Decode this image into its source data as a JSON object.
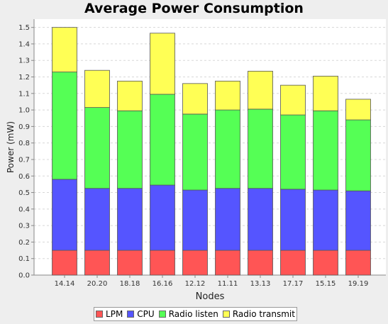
{
  "chart_data": {
    "type": "bar",
    "stacked": true,
    "title": "Average Power Consumption",
    "xlabel": "Nodes",
    "ylabel": "Power (mW)",
    "ylim": [
      0,
      1.55
    ],
    "yticks": [
      "0.0",
      "0.1",
      "0.2",
      "0.3",
      "0.4",
      "0.5",
      "0.6",
      "0.7",
      "0.8",
      "0.9",
      "1.0",
      "1.1",
      "1.2",
      "1.3",
      "1.4",
      "1.5"
    ],
    "grid": true,
    "legend_position": "bottom",
    "categories": [
      "14.14",
      "20.20",
      "18.18",
      "16.16",
      "12.12",
      "11.11",
      "13.13",
      "17.17",
      "15.15",
      "19.19"
    ],
    "series": [
      {
        "name": "LPM",
        "color": "#ff5555",
        "values": [
          0.15,
          0.15,
          0.15,
          0.15,
          0.15,
          0.15,
          0.15,
          0.15,
          0.15,
          0.15
        ]
      },
      {
        "name": "CPU",
        "color": "#5555ff",
        "values": [
          0.43,
          0.375,
          0.375,
          0.395,
          0.365,
          0.375,
          0.375,
          0.37,
          0.365,
          0.36
        ]
      },
      {
        "name": "Radio listen",
        "color": "#55ff55",
        "values": [
          0.65,
          0.49,
          0.47,
          0.55,
          0.46,
          0.475,
          0.48,
          0.45,
          0.48,
          0.43
        ]
      },
      {
        "name": "Radio transmit",
        "color": "#ffff55",
        "values": [
          0.27,
          0.225,
          0.18,
          0.37,
          0.185,
          0.175,
          0.23,
          0.18,
          0.21,
          0.125
        ]
      }
    ]
  }
}
